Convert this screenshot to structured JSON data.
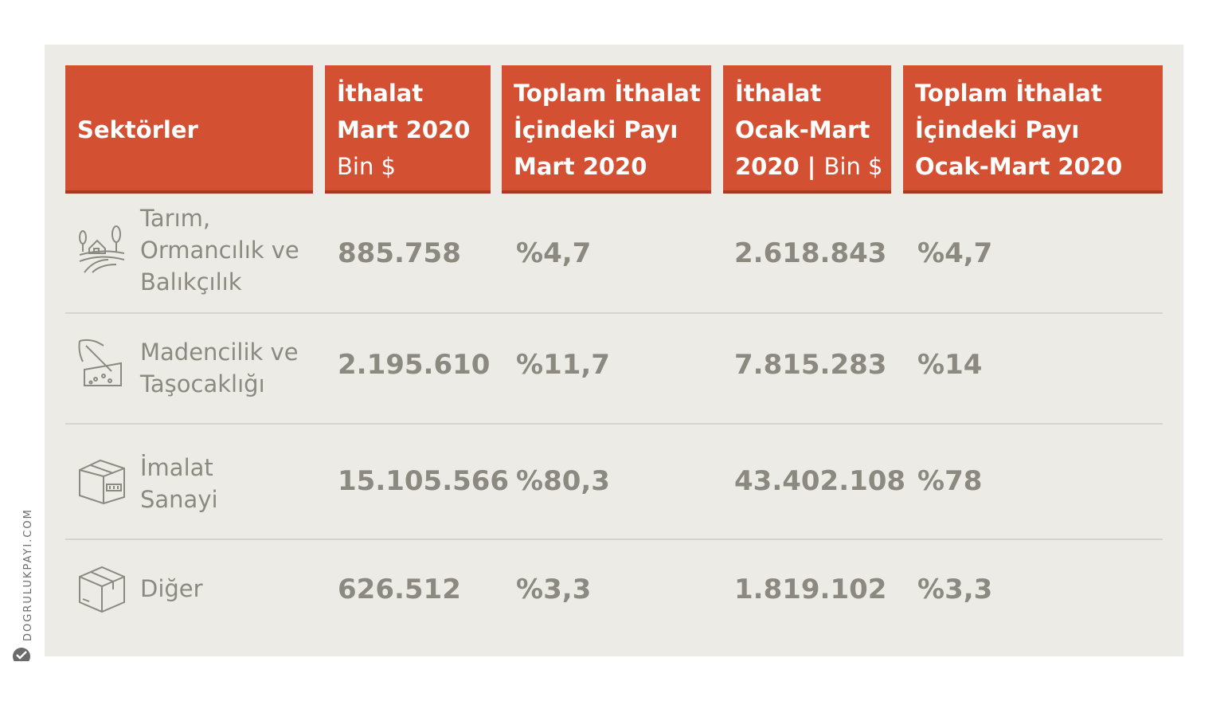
{
  "chart_data": {
    "type": "table",
    "columns": [
      {
        "lines": [
          "Sektörler"
        ]
      },
      {
        "lines": [
          "İthalat",
          "Mart 2020"
        ],
        "sub": "Bin $"
      },
      {
        "lines": [
          "Toplam İthalat",
          "İçindeki Payı",
          "Mart 2020"
        ]
      },
      {
        "lines": [
          "İthalat",
          "Ocak-Mart"
        ],
        "last_bold": "2020 | ",
        "last_reg": "Bin $"
      },
      {
        "lines": [
          "Toplam İthalat",
          "İçindeki Payı",
          "Ocak-Mart 2020"
        ]
      }
    ],
    "rows": [
      {
        "icon": "farm-icon",
        "label": [
          "Tarım,",
          "Ormancılık ve",
          "Balıkçılık"
        ],
        "cells": [
          "885.758",
          "%4,7",
          "2.618.843",
          "%4,7"
        ]
      },
      {
        "icon": "pickaxe-icon",
        "label": [
          "Madencilik ve",
          "Taşocaklığı"
        ],
        "cells": [
          "2.195.610",
          "%11,7",
          "7.815.283",
          "%14"
        ]
      },
      {
        "icon": "factory-box-icon",
        "label": [
          "İmalat",
          "Sanayi"
        ],
        "cells": [
          "15.105.566",
          "%80,3",
          "43.402.108",
          "%78"
        ]
      },
      {
        "icon": "box-icon",
        "label": [
          "Diğer"
        ],
        "cells": [
          "626.512",
          "%3,3",
          "1.819.102",
          "%3,3"
        ]
      }
    ],
    "colors": {
      "header": "#d45033",
      "header_border": "#a83a24",
      "panel": "#ecebe6",
      "text": "#8c8a80"
    }
  },
  "brand": {
    "text": "DOGRULUKPAYI.COM",
    "icon": "checkmark-logo-icon"
  }
}
